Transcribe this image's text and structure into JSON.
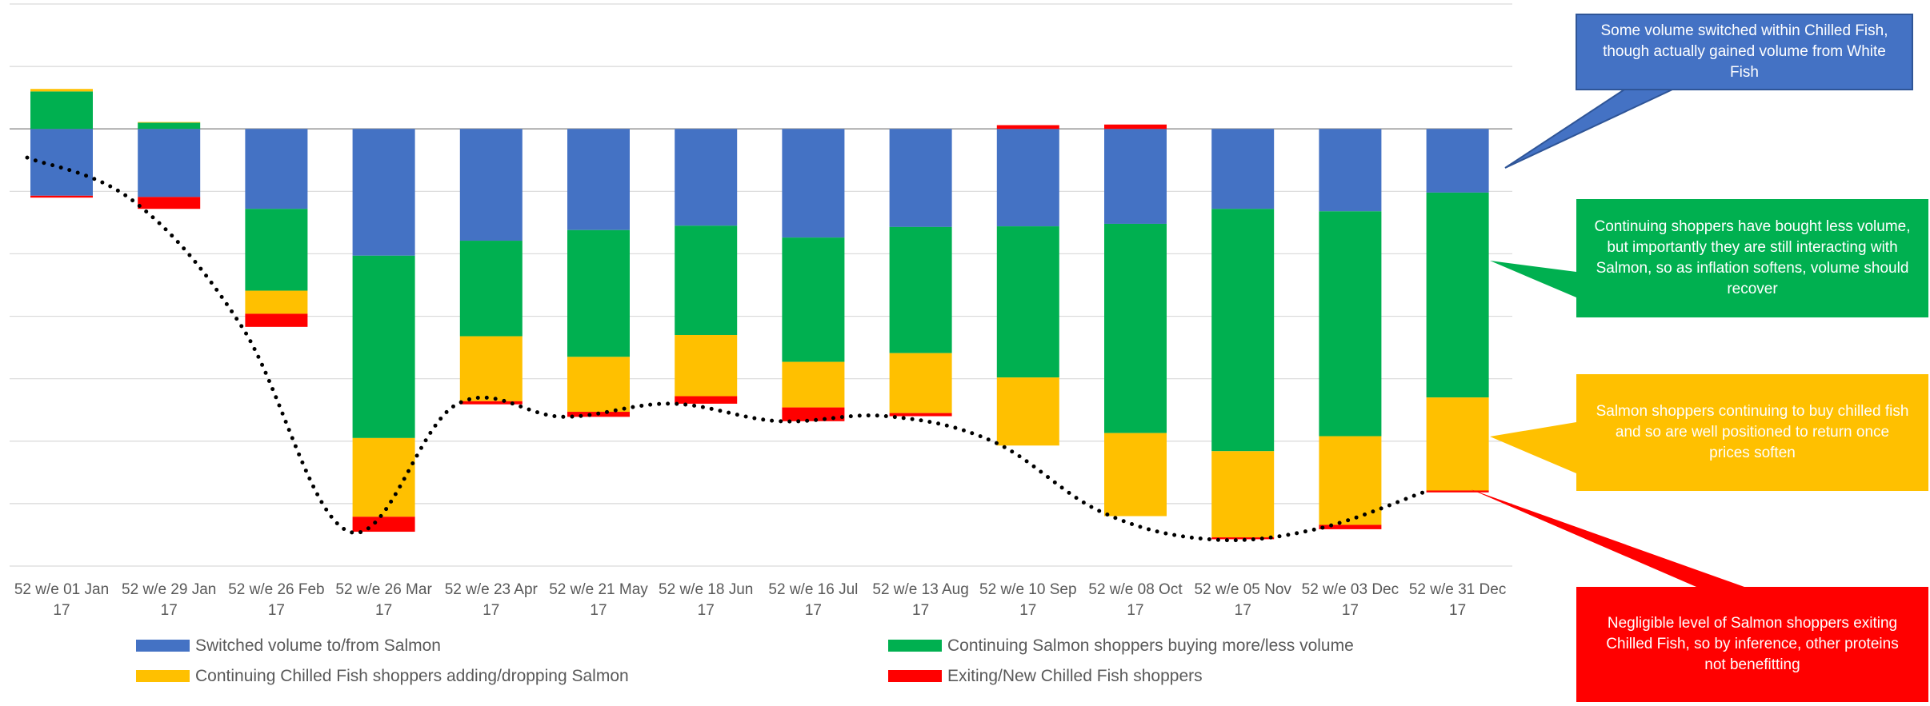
{
  "chart_data": {
    "type": "bar",
    "stacked": true,
    "categories": [
      [
        "52 w/e 01 Jan",
        "17"
      ],
      [
        "52 w/e 29 Jan",
        "17"
      ],
      [
        "52 w/e 26 Feb",
        "17"
      ],
      [
        "52 w/e 26 Mar",
        "17"
      ],
      [
        "52 w/e 23 Apr",
        "17"
      ],
      [
        "52 w/e 21 May",
        "17"
      ],
      [
        "52 w/e 18 Jun",
        "17"
      ],
      [
        "52 w/e 16 Jul",
        "17"
      ],
      [
        "52 w/e 13 Aug",
        "17"
      ],
      [
        "52 w/e 10 Sep",
        "17"
      ],
      [
        "52 w/e 08 Oct",
        "17"
      ],
      [
        "52 w/e 05 Nov",
        "17"
      ],
      [
        "52 w/e 03 Dec",
        "17"
      ],
      [
        "52 w/e 31 Dec",
        "17"
      ]
    ],
    "series": [
      {
        "name": "Switched volume to/from Salmon",
        "color": "#4472C4",
        "values": [
          -1.07,
          -1.09,
          -1.28,
          -2.03,
          -1.79,
          -1.62,
          -1.55,
          -1.74,
          -1.57,
          -1.56,
          -1.52,
          -1.28,
          -1.32,
          -1.02
        ]
      },
      {
        "name": "Continuing Salmon shoppers buying more/less volume",
        "color": "#00B050",
        "values": [
          0.6,
          0.1,
          -1.31,
          -2.92,
          -1.53,
          -2.03,
          -1.75,
          -1.99,
          -2.02,
          -2.42,
          -3.35,
          -3.88,
          -3.6,
          -3.28
        ]
      },
      {
        "name": "Continuing Chilled Fish shoppers adding/dropping Salmon",
        "color": "#FFC000",
        "values": [
          0.04,
          0.01,
          -0.37,
          -1.26,
          -1.04,
          -0.88,
          -0.98,
          -0.73,
          -0.96,
          -1.09,
          -1.33,
          -1.38,
          -1.42,
          -1.49
        ]
      },
      {
        "name": "Exiting/New Chilled Fish shoppers",
        "color": "#FF0000",
        "values": [
          -0.03,
          -0.19,
          -0.21,
          -0.24,
          -0.05,
          -0.08,
          -0.12,
          -0.22,
          -0.05,
          0.06,
          0.07,
          -0.03,
          -0.07,
          -0.03
        ]
      }
    ],
    "line": {
      "style": "dotted",
      "color": "#000000",
      "values": [
        -0.46,
        -1.17,
        -3.17,
        -6.45,
        -4.41,
        -4.61,
        -4.4,
        -4.68,
        -4.6,
        -5.01,
        -6.13,
        -6.57,
        -6.41,
        -5.82
      ]
    },
    "ylim": [
      -7.0,
      2.0
    ],
    "grid": true,
    "legend": "bottom"
  },
  "callouts": [
    {
      "text": "Some volume switched within Chilled Fish,\nthough actually gained volume from White\nFish",
      "color": "#4472C4"
    },
    {
      "text": "Continuing shoppers have bought less volume,\nbut importantly they are still interacting with\nSalmon, so as inflation softens, volume should\nrecover",
      "color": "#00B050"
    },
    {
      "text": "Salmon shoppers continuing to buy chilled fish\nand so are well positioned to return once\nprices soften",
      "color": "#FFC000"
    },
    {
      "text": "Negligible level of Salmon shoppers exiting\nChilled Fish, so by inference, other proteins\nnot benefitting",
      "color": "#FF0000"
    }
  ]
}
